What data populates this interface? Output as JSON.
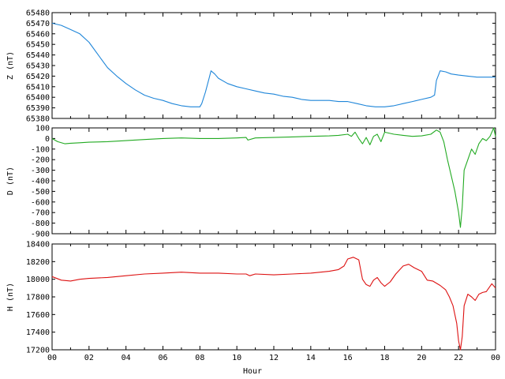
{
  "chart_data": [
    {
      "type": "line",
      "ylabel": "Z (nT)",
      "ylim": [
        65380,
        65480
      ],
      "yticks": [
        65380,
        65390,
        65400,
        65410,
        65420,
        65430,
        65440,
        65450,
        65460,
        65470,
        65480
      ],
      "color": "#1f86d9",
      "series": [
        {
          "x": [
            0,
            0.5,
            1,
            1.5,
            2,
            2.5,
            3,
            3.5,
            4,
            4.5,
            5,
            5.5,
            6,
            6.5,
            7,
            7.5,
            8,
            8.1,
            8.3,
            8.5,
            8.6,
            8.8,
            9,
            9.5,
            10,
            10.5,
            11,
            11.5,
            12,
            12.5,
            13,
            13.5,
            14,
            14.5,
            15,
            15.5,
            16,
            16.5,
            17,
            17.5,
            18,
            18.5,
            19,
            19.5,
            20,
            20.5,
            20.7,
            20.8,
            21,
            21.3,
            21.6,
            22,
            22.5,
            23,
            23.5,
            24
          ],
          "values": [
            65470,
            65468,
            65464,
            65460,
            65452,
            65440,
            65428,
            65420,
            65413,
            65407,
            65402,
            65399,
            65397,
            65394,
            65392,
            65391,
            65391,
            65394,
            65405,
            65418,
            65425,
            65422,
            65418,
            65413,
            65410,
            65408,
            65406,
            65404,
            65403,
            65401,
            65400,
            65398,
            65397,
            65397,
            65397,
            65396,
            65396,
            65394,
            65392,
            65391,
            65391,
            65392,
            65394,
            65396,
            65398,
            65400,
            65402,
            65416,
            65425,
            65424,
            65422,
            65421,
            65420,
            65419,
            65419,
            65419
          ]
        }
      ]
    },
    {
      "type": "line",
      "ylabel": "D (nT)",
      "ylim": [
        -900,
        100
      ],
      "yticks": [
        -900,
        -800,
        -700,
        -600,
        -500,
        -400,
        -300,
        -200,
        -100,
        0,
        100
      ],
      "color": "#22aa22",
      "series": [
        {
          "x": [
            0,
            0.3,
            0.7,
            1,
            1.5,
            2,
            3,
            4,
            5,
            6,
            7,
            8,
            9,
            10,
            10.5,
            10.6,
            11,
            12,
            13,
            14,
            15,
            15.5,
            16,
            16.2,
            16.4,
            16.6,
            16.8,
            17,
            17.2,
            17.4,
            17.6,
            17.8,
            18,
            18.5,
            19,
            19.5,
            20,
            20.5,
            20.8,
            21,
            21.2,
            21.4,
            21.6,
            21.8,
            22,
            22.1,
            22.2,
            22.3,
            22.5,
            22.7,
            22.9,
            23.1,
            23.3,
            23.5,
            23.7,
            23.9,
            24
          ],
          "values": [
            0,
            -30,
            -50,
            -45,
            -40,
            -35,
            -30,
            -20,
            -10,
            0,
            5,
            0,
            0,
            5,
            10,
            -15,
            5,
            10,
            15,
            20,
            25,
            30,
            40,
            20,
            60,
            0,
            -50,
            10,
            -60,
            20,
            40,
            -30,
            60,
            40,
            30,
            20,
            25,
            40,
            80,
            60,
            -30,
            -200,
            -350,
            -500,
            -700,
            -840,
            -650,
            -300,
            -200,
            -100,
            -150,
            -50,
            0,
            -20,
            20,
            100,
            20
          ]
        }
      ]
    },
    {
      "type": "line",
      "xlabel": "Hour",
      "ylabel": "H (nT)",
      "xticks": [
        "00",
        "02",
        "04",
        "06",
        "08",
        "10",
        "12",
        "14",
        "16",
        "18",
        "20",
        "22",
        "00"
      ],
      "ylim": [
        17200,
        18400
      ],
      "yticks": [
        17200,
        17400,
        17600,
        17800,
        18000,
        18200,
        18400
      ],
      "color": "#dd1111",
      "series": [
        {
          "x": [
            0,
            0.5,
            1,
            1.5,
            2,
            3,
            4,
            5,
            6,
            7,
            8,
            9,
            10,
            10.5,
            10.7,
            11,
            12,
            13,
            14,
            15,
            15.5,
            15.8,
            16,
            16.3,
            16.6,
            16.8,
            17,
            17.2,
            17.4,
            17.6,
            17.8,
            18,
            18.3,
            18.6,
            19,
            19.3,
            19.6,
            20,
            20.3,
            20.6,
            21,
            21.3,
            21.5,
            21.7,
            21.9,
            22,
            22.1,
            22.2,
            22.3,
            22.5,
            22.7,
            22.9,
            23.1,
            23.3,
            23.5,
            23.8,
            24
          ],
          "values": [
            18030,
            17990,
            17980,
            18000,
            18010,
            18020,
            18040,
            18060,
            18070,
            18080,
            18070,
            18070,
            18060,
            18060,
            18040,
            18060,
            18050,
            18060,
            18070,
            18090,
            18110,
            18150,
            18230,
            18250,
            18220,
            18000,
            17940,
            17920,
            17990,
            18020,
            17960,
            17920,
            17970,
            18060,
            18150,
            18170,
            18130,
            18090,
            17990,
            17980,
            17930,
            17880,
            17800,
            17700,
            17500,
            17300,
            17200,
            17350,
            17700,
            17830,
            17800,
            17760,
            17830,
            17850,
            17860,
            17950,
            17900
          ]
        }
      ]
    }
  ]
}
